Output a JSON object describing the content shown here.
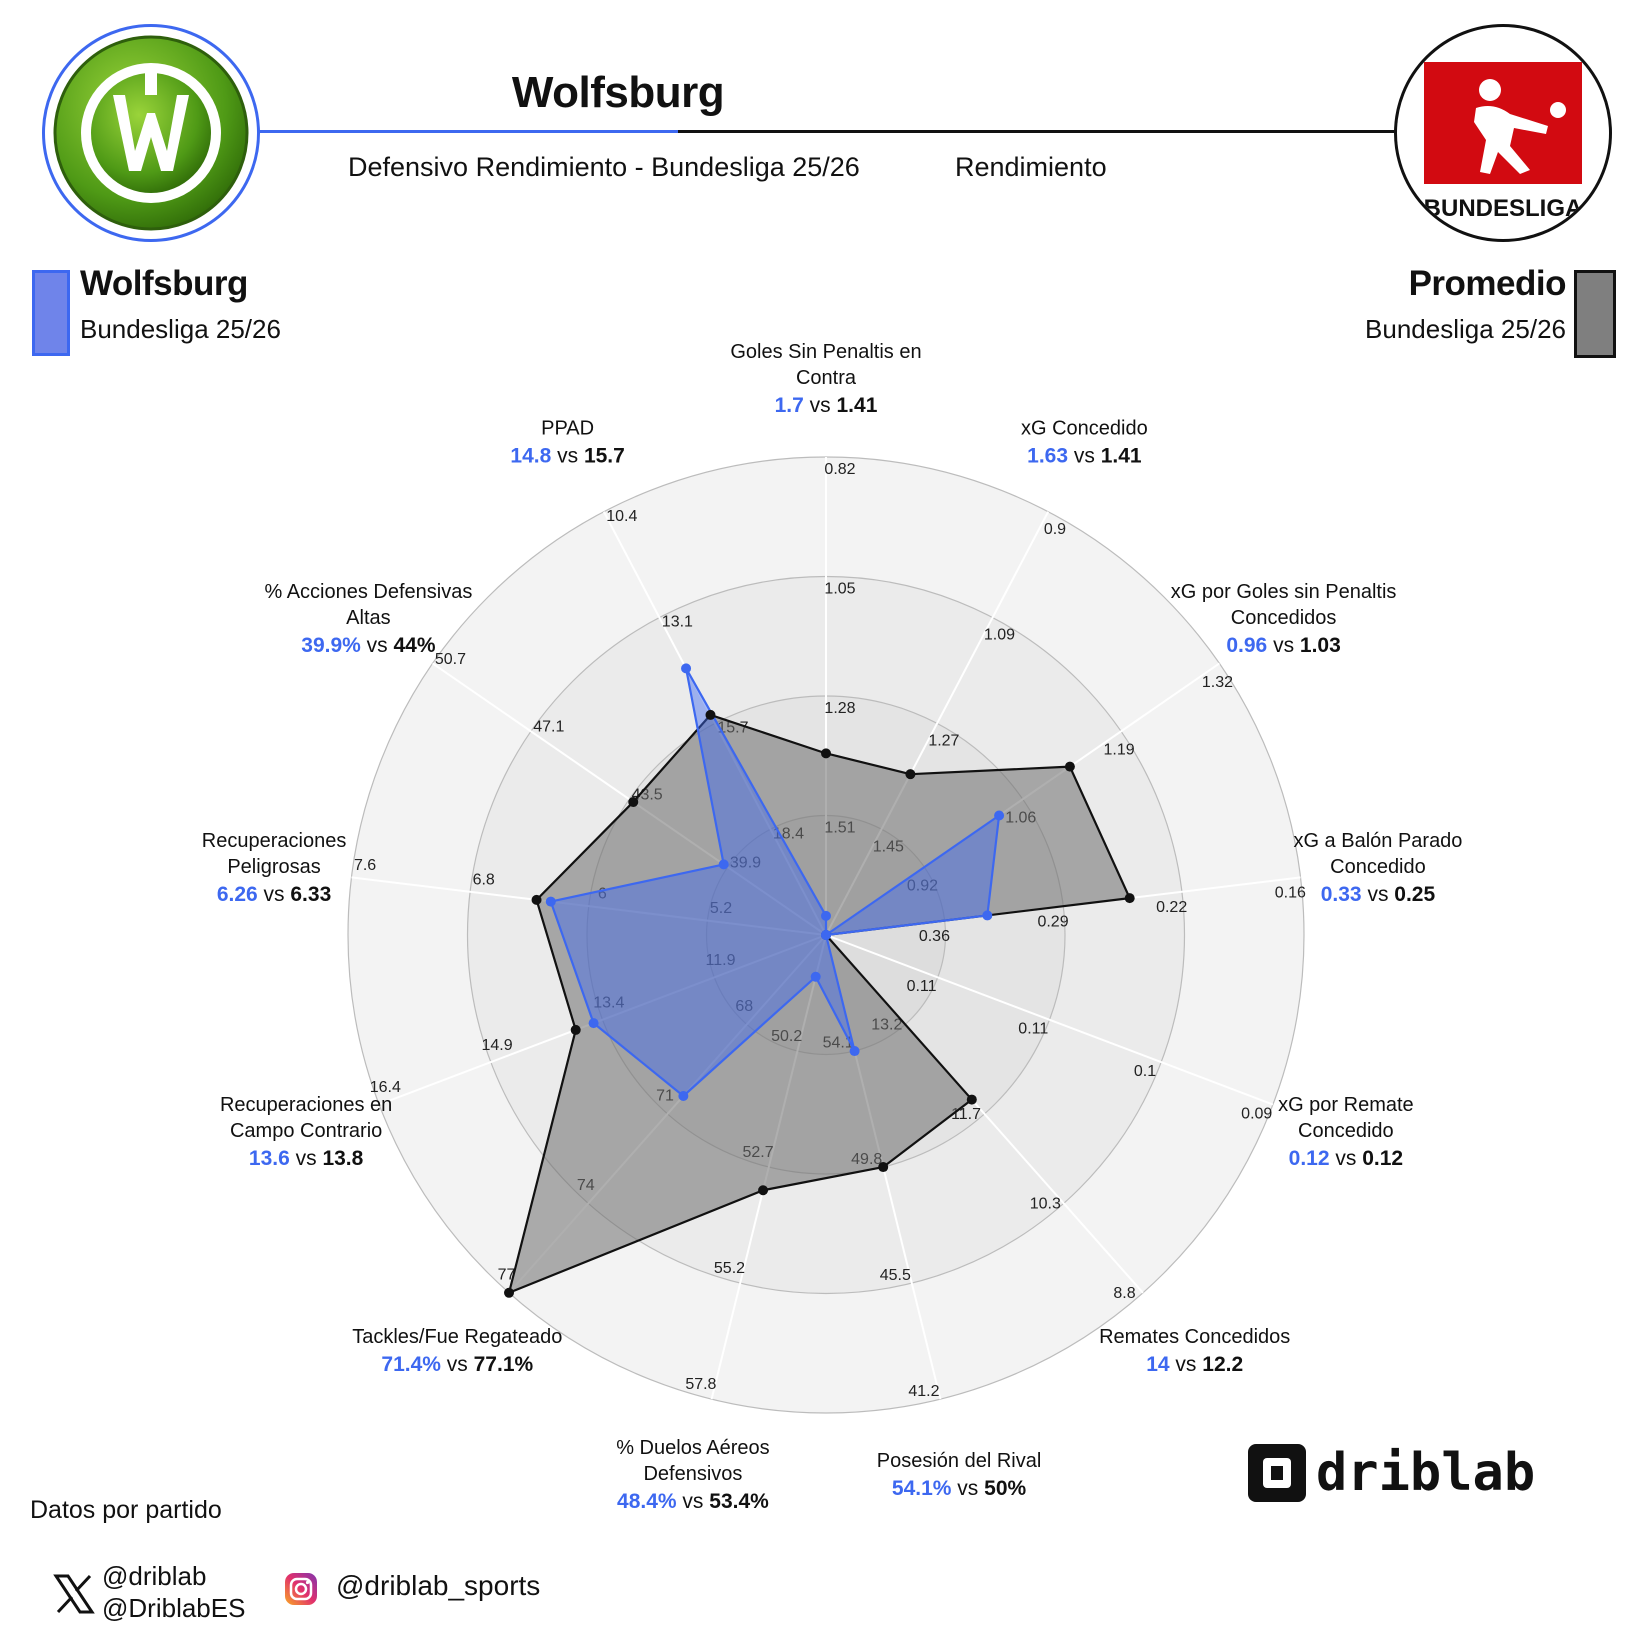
{
  "header": {
    "title": "Wolfsburg",
    "subtitle": "Defensivo Rendimiento - Bundesliga 25/26",
    "subtitle2": "Rendimiento"
  },
  "legend": {
    "left": {
      "name": "Wolfsburg",
      "sub": "Bundesliga 25/26",
      "color": "#3d68f0"
    },
    "right": {
      "name": "Promedio",
      "sub": "Bundesliga 25/26",
      "color": "#111111"
    }
  },
  "footer": {
    "note": "Datos por partido",
    "x_handle_1": "@driblab",
    "x_handle_2": "@DriblabES",
    "instagram_handle": "@driblab_sports",
    "brand": "driblab"
  },
  "logos": {
    "league_text": "BUNDESLIGA"
  },
  "chart_data": {
    "type": "radar",
    "series": [
      {
        "name": "Wolfsburg",
        "color": "#3d68f0"
      },
      {
        "name": "Promedio",
        "color": "#111111"
      }
    ],
    "axes": [
      {
        "label": [
          "Goles Sin Penaltis en",
          "Contra"
        ],
        "team": "1.7",
        "avg": "1.41",
        "team_r": 0.04,
        "avg_r": 0.38,
        "ticks": [
          "1.51",
          "1.28",
          "1.05",
          "0.82"
        ]
      },
      {
        "label": [
          "xG Concedido"
        ],
        "team": "1.63",
        "avg": "1.41",
        "team_r": 0.0,
        "avg_r": 0.38,
        "ticks": [
          "1.45",
          "1.27",
          "1.09",
          "0.9"
        ]
      },
      {
        "label": [
          "xG por Goles sin Penaltis",
          "Concedidos"
        ],
        "team": "0.96",
        "avg": "1.03",
        "team_r": 0.44,
        "avg_r": 0.62,
        "ticks": [
          "0.92",
          "1.06",
          "1.19",
          "1.32"
        ]
      },
      {
        "label": [
          "xG a Balón Parado",
          "Concedido"
        ],
        "team": "0.33",
        "avg": "0.25",
        "team_r": 0.34,
        "avg_r": 0.64,
        "ticks": [
          "0.36",
          "0.29",
          "0.22",
          "0.16"
        ]
      },
      {
        "label": [
          "xG por Remate",
          "Concedido"
        ],
        "team": "0.12",
        "avg": "0.12",
        "team_r": 0.0,
        "avg_r": 0.0,
        "ticks": [
          "0.11",
          "0.11",
          "0.1",
          "0.09"
        ]
      },
      {
        "label": [
          "Remates Concedidos"
        ],
        "team": "14",
        "avg": "12.2",
        "team_r": 0.0,
        "avg_r": 0.46,
        "ticks": [
          "13.2",
          "11.7",
          "10.3",
          "8.8"
        ]
      },
      {
        "label": [
          "Posesión del Rival"
        ],
        "team": "54.1%",
        "avg": "50%",
        "team_r": 0.25,
        "avg_r": 0.5,
        "ticks": [
          "54.1",
          "49.8",
          "45.5",
          "41.2"
        ]
      },
      {
        "label": [
          "% Duelos Aéreos",
          "Defensivos"
        ],
        "team": "48.4%",
        "avg": "53.4%",
        "team_r": 0.09,
        "avg_r": 0.55,
        "ticks": [
          "50.2",
          "52.7",
          "55.2",
          "57.8"
        ]
      },
      {
        "label": [
          "Tackles/Fue Regateado"
        ],
        "team": "71.4%",
        "avg": "77.1%",
        "team_r": 0.45,
        "avg_r": 1.0,
        "ticks": [
          "68",
          "71",
          "74",
          "77"
        ]
      },
      {
        "label": [
          "Recuperaciones en",
          "Campo Contrario"
        ],
        "team": "13.6",
        "avg": "13.8",
        "team_r": 0.52,
        "avg_r": 0.56,
        "ticks": [
          "11.9",
          "13.4",
          "14.9",
          "16.4"
        ]
      },
      {
        "label": [
          "Recuperaciones",
          "Peligrosas"
        ],
        "team": "6.26",
        "avg": "6.33",
        "team_r": 0.58,
        "avg_r": 0.61,
        "ticks": [
          "5.2",
          "6",
          "6.8",
          "7.6"
        ]
      },
      {
        "label": [
          "% Acciones Defensivas",
          "Altas"
        ],
        "team": "39.9%",
        "avg": "44%",
        "team_r": 0.26,
        "avg_r": 0.49,
        "ticks": [
          "39.9",
          "43.5",
          "47.1",
          "50.7"
        ]
      },
      {
        "label": [
          "PPAD"
        ],
        "team": "14.8",
        "avg": "15.7",
        "team_r": 0.63,
        "avg_r": 0.52,
        "ticks": [
          "18.4",
          "15.7",
          "13.1",
          "10.4"
        ]
      }
    ]
  }
}
